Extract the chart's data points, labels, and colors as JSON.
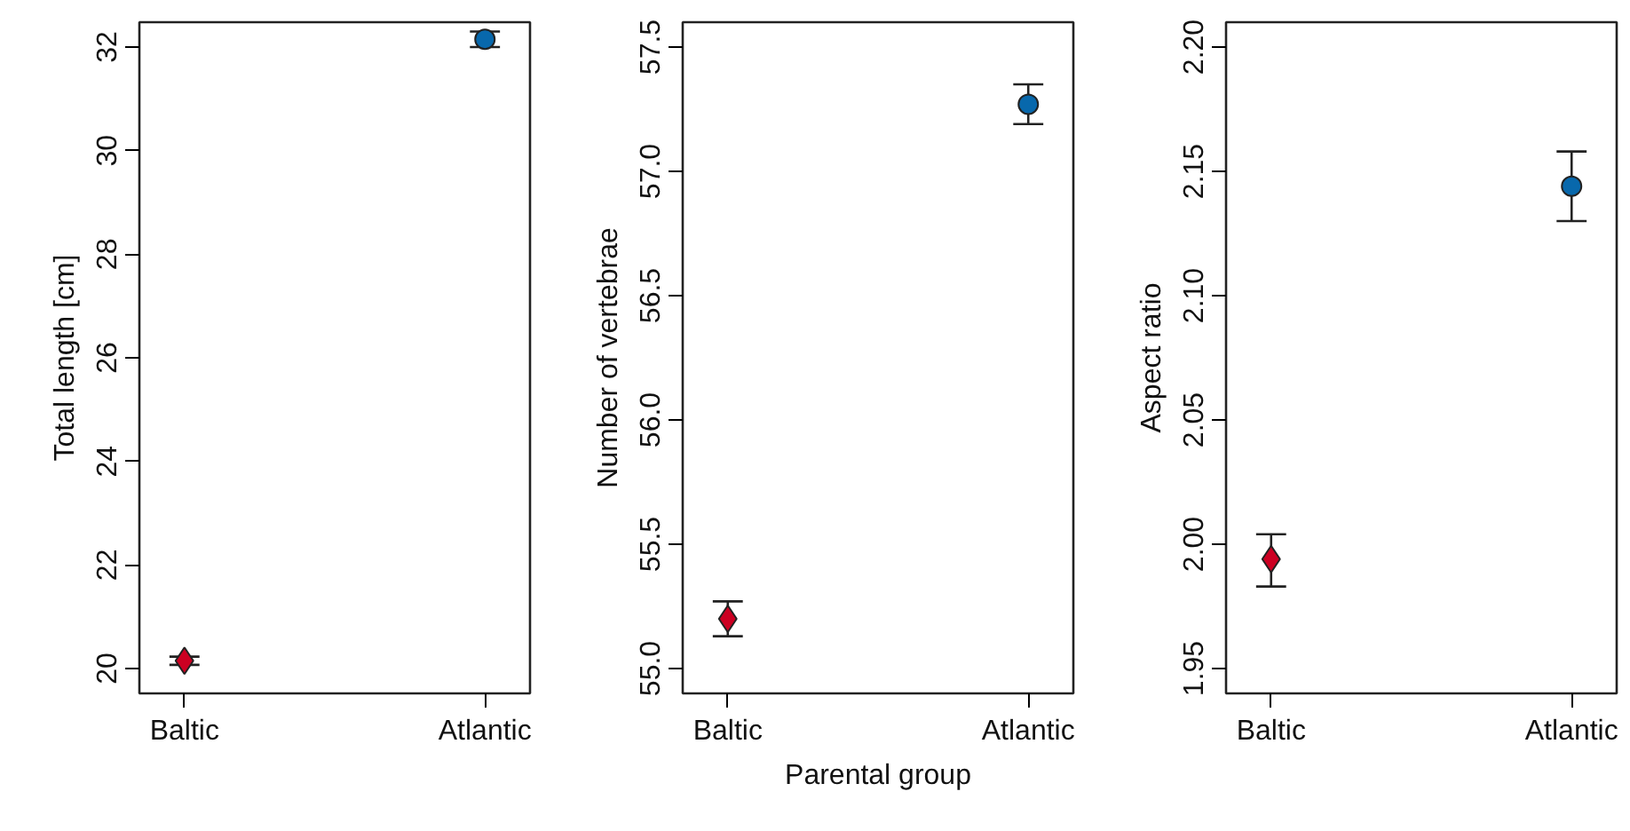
{
  "chart_data": [
    {
      "type": "scatter",
      "ylabel": "Total length [cm]",
      "categories": [
        "Baltic",
        "Atlantic"
      ],
      "ylim": [
        19.52,
        32.48
      ],
      "yticks": [
        20,
        22,
        24,
        26,
        28,
        30,
        32
      ],
      "grid": false,
      "series": [
        {
          "x": [
            "Baltic"
          ],
          "values": [
            20.15
          ],
          "errors": [
            [
              20.07,
              20.23
            ]
          ],
          "color": "#cc0022",
          "marker": "diamond"
        },
        {
          "x": [
            "Atlantic"
          ],
          "values": [
            32.15
          ],
          "errors": [
            [
              32.0,
              32.3
            ]
          ],
          "color": "#0868ac",
          "marker": "circle"
        }
      ]
    },
    {
      "type": "scatter",
      "ylabel": "Number of vertebrae",
      "xlabel": "Parental group",
      "categories": [
        "Baltic",
        "Atlantic"
      ],
      "ylim": [
        54.9,
        57.6
      ],
      "yticks": [
        {
          "value": 55,
          "label": "55.0"
        },
        55.5,
        {
          "value": 56,
          "label": "56.0"
        },
        56.5,
        {
          "value": 57,
          "label": "57.0"
        },
        57.5
      ],
      "grid": false,
      "series": [
        {
          "x": [
            "Baltic"
          ],
          "values": [
            55.2
          ],
          "errors": [
            [
              55.13,
              55.27
            ]
          ],
          "color": "#cc0022",
          "marker": "diamond"
        },
        {
          "x": [
            "Atlantic"
          ],
          "values": [
            57.27
          ],
          "errors": [
            [
              57.19,
              57.35
            ]
          ],
          "color": "#0868ac",
          "marker": "circle"
        }
      ]
    },
    {
      "type": "scatter",
      "ylabel": "Aspect ratio",
      "categories": [
        "Baltic",
        "Atlantic"
      ],
      "ylim": [
        1.94,
        2.21
      ],
      "yticks": [
        1.95,
        {
          "value": 2.0,
          "label": "2.00"
        },
        2.05,
        {
          "value": 2.1,
          "label": "2.10"
        },
        2.15,
        {
          "value": 2.2,
          "label": "2.20"
        }
      ],
      "grid": false,
      "series": [
        {
          "x": [
            "Baltic"
          ],
          "values": [
            1.994
          ],
          "errors": [
            [
              1.983,
              2.004
            ]
          ],
          "color": "#cc0022",
          "marker": "diamond"
        },
        {
          "x": [
            "Atlantic"
          ],
          "values": [
            2.144
          ],
          "errors": [
            [
              2.13,
              2.158
            ]
          ],
          "color": "#0868ac",
          "marker": "circle"
        }
      ]
    }
  ]
}
